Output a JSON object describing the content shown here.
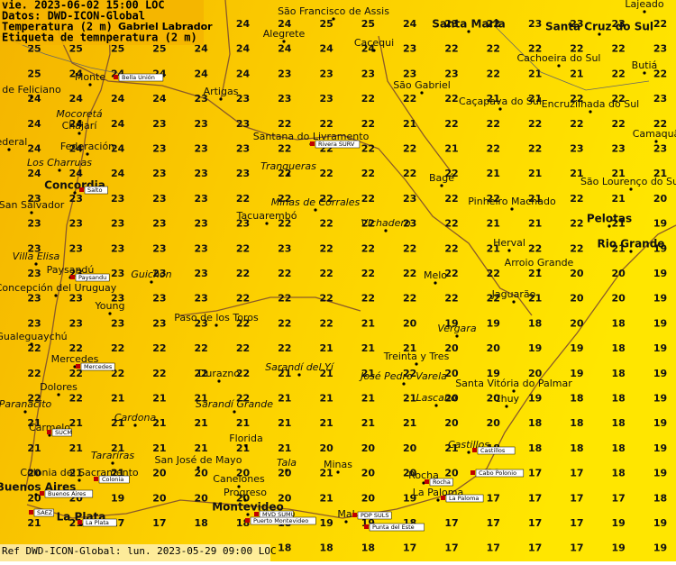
{
  "header": {
    "lines": [
      "vie. 2023-06-02 15:00 LOC",
      "Datos: DWD-ICON-Global",
      "Temperatura (2 m)",
      "Etiqueta de temnperatura (2 m)"
    ],
    "author": "Gabriel Labrador"
  },
  "footer": "Ref DWD-ICON-Global: lun. 2023-05-29 09:00 LOC",
  "grid": [
    [
      "25",
      "25",
      "25",
      "25",
      "24",
      "24",
      "24",
      "25",
      "25",
      "24",
      "23",
      "22",
      "23",
      "23",
      "23",
      "22"
    ],
    [
      "25",
      "25",
      "25",
      "25",
      "24",
      "24",
      "24",
      "24",
      "24",
      "23",
      "22",
      "22",
      "22",
      "22",
      "22",
      "23"
    ],
    [
      "25",
      "24",
      "24",
      "24",
      "24",
      "24",
      "23",
      "23",
      "23",
      "23",
      "23",
      "22",
      "21",
      "21",
      "22",
      "22"
    ],
    [
      "24",
      "24",
      "24",
      "24",
      "23",
      "23",
      "23",
      "23",
      "22",
      "22",
      "22",
      "21",
      "21",
      "22",
      "22",
      "23"
    ],
    [
      "24",
      "24",
      "24",
      "23",
      "23",
      "23",
      "22",
      "22",
      "22",
      "21",
      "22",
      "22",
      "22",
      "22",
      "22",
      "22"
    ],
    [
      "24",
      "24",
      "24",
      "23",
      "23",
      "23",
      "22",
      "22",
      "22",
      "22",
      "21",
      "22",
      "22",
      "23",
      "23",
      "23"
    ],
    [
      "24",
      "24",
      "24",
      "23",
      "23",
      "23",
      "22",
      "22",
      "22",
      "22",
      "22",
      "21",
      "21",
      "21",
      "21",
      "21"
    ],
    [
      "23",
      "23",
      "23",
      "23",
      "23",
      "22",
      "22",
      "22",
      "22",
      "23",
      "22",
      "22",
      "21",
      "22",
      "21",
      "20"
    ],
    [
      "23",
      "23",
      "23",
      "23",
      "23",
      "23",
      "22",
      "22",
      "22",
      "23",
      "22",
      "21",
      "21",
      "22",
      "21",
      "19"
    ],
    [
      "23",
      "23",
      "23",
      "23",
      "23",
      "22",
      "23",
      "22",
      "22",
      "22",
      "22",
      "21",
      "22",
      "22",
      "21",
      "19"
    ],
    [
      "23",
      "23",
      "23",
      "23",
      "23",
      "22",
      "22",
      "22",
      "22",
      "22",
      "22",
      "22",
      "21",
      "20",
      "20",
      "19"
    ],
    [
      "23",
      "23",
      "23",
      "23",
      "23",
      "22",
      "22",
      "22",
      "22",
      "22",
      "22",
      "22",
      "21",
      "20",
      "20",
      "19"
    ],
    [
      "23",
      "23",
      "23",
      "23",
      "23",
      "22",
      "22",
      "22",
      "21",
      "20",
      "19",
      "19",
      "18",
      "20",
      "18",
      "19"
    ],
    [
      "22",
      "22",
      "22",
      "22",
      "22",
      "22",
      "22",
      "21",
      "21",
      "21",
      "20",
      "20",
      "19",
      "19",
      "18",
      "19"
    ],
    [
      "22",
      "22",
      "22",
      "22",
      "22",
      "22",
      "21",
      "21",
      "21",
      "22",
      "20",
      "19",
      "20",
      "19",
      "18",
      "19"
    ],
    [
      "22",
      "22",
      "21",
      "21",
      "21",
      "22",
      "21",
      "21",
      "21",
      "21",
      "20",
      "20",
      "19",
      "18",
      "18",
      "19"
    ],
    [
      "21",
      "21",
      "21",
      "21",
      "21",
      "21",
      "21",
      "21",
      "21",
      "21",
      "20",
      "20",
      "18",
      "18",
      "18",
      "19"
    ],
    [
      "21",
      "21",
      "21",
      "21",
      "21",
      "21",
      "21",
      "20",
      "20",
      "20",
      "21",
      "18",
      "18",
      "18",
      "18",
      "19"
    ],
    [
      "20",
      "21",
      "21",
      "20",
      "20",
      "20",
      "20",
      "21",
      "20",
      "20",
      "20",
      "20",
      "17",
      "17",
      "18",
      "19"
    ],
    [
      "20",
      "20",
      "19",
      "20",
      "20",
      "20",
      "20",
      "21",
      "20",
      "19",
      "19",
      "17",
      "17",
      "17",
      "17",
      "18"
    ],
    [
      "21",
      "21",
      "17",
      "17",
      "18",
      "18",
      "18",
      "19",
      "19",
      "18",
      "17",
      "17",
      "17",
      "17",
      "19",
      "19"
    ],
    [
      null,
      null,
      null,
      null,
      null,
      null,
      "18",
      "18",
      "18",
      "17",
      "17",
      "17",
      "17",
      "17",
      "19",
      "19"
    ]
  ],
  "places": [
    "São Francisco de Assis",
    "Santa Maria",
    "Santa Cruz do Sul",
    "Lajeado",
    "Alegrete",
    "Cacequi",
    "Cachoeira do Sul",
    "Butiá",
    "Monte",
    "de Feliciano",
    "Artigas",
    "São Gabriel",
    "Caçapava do Sul",
    "Encruzilhada do Sul",
    "Mocoretá",
    "Chajarí",
    "Camaquã",
    "Santana do Livramento",
    "Federal",
    "Federación",
    "Tranqueras",
    "Los Charruas",
    "Concordia",
    "Bagé",
    "São Lourenço do Sul",
    "Minas de Corrales",
    "Pinheiro Machado",
    "San Salvador",
    "Tacuarembó",
    "Vichadero",
    "Pelotas",
    "Herval",
    "Rio Grande",
    "Villa Elisa",
    "Arroio Grande",
    "Paysandú",
    "Guichón",
    "Melo",
    "Concepción del Uruguay",
    "Jaguarão",
    "Young",
    "Paso de los Toros",
    "Gualeguaychú",
    "Vergara",
    "Treinta y Tres",
    "Mercedes",
    "Durazno",
    "Sarandí del Yí",
    "José Pedro Varela",
    "Santa Vitória do Palmar",
    "Dolores",
    "Chuy",
    "Lascano",
    "Sarandí Grande",
    "Paranacito",
    "Cardona",
    "Carmelo",
    "Florida",
    "Castillos",
    "Tarariras",
    "San José de Mayo",
    "Tala",
    "Minas",
    "Colonia del Sacramento",
    "Rocha",
    "Canelones",
    "Progreso",
    "Buenos Aires",
    "La Paloma",
    "Montevideo",
    "Mal",
    "La Plata"
  ],
  "stations": [
    "Bella Unión",
    "Rivera SURV",
    "Salto",
    "Paysandu",
    "Mercedes",
    "SUCM",
    "Castillos",
    "Colonia",
    "Rocha",
    "Cabo Polonio",
    "Buenos Aires",
    "La Paloma",
    "MVD SUMU",
    "SAEZ",
    "PDP SULS",
    "Punta del Este",
    "Puerto Montevideo",
    "La Plata"
  ]
}
